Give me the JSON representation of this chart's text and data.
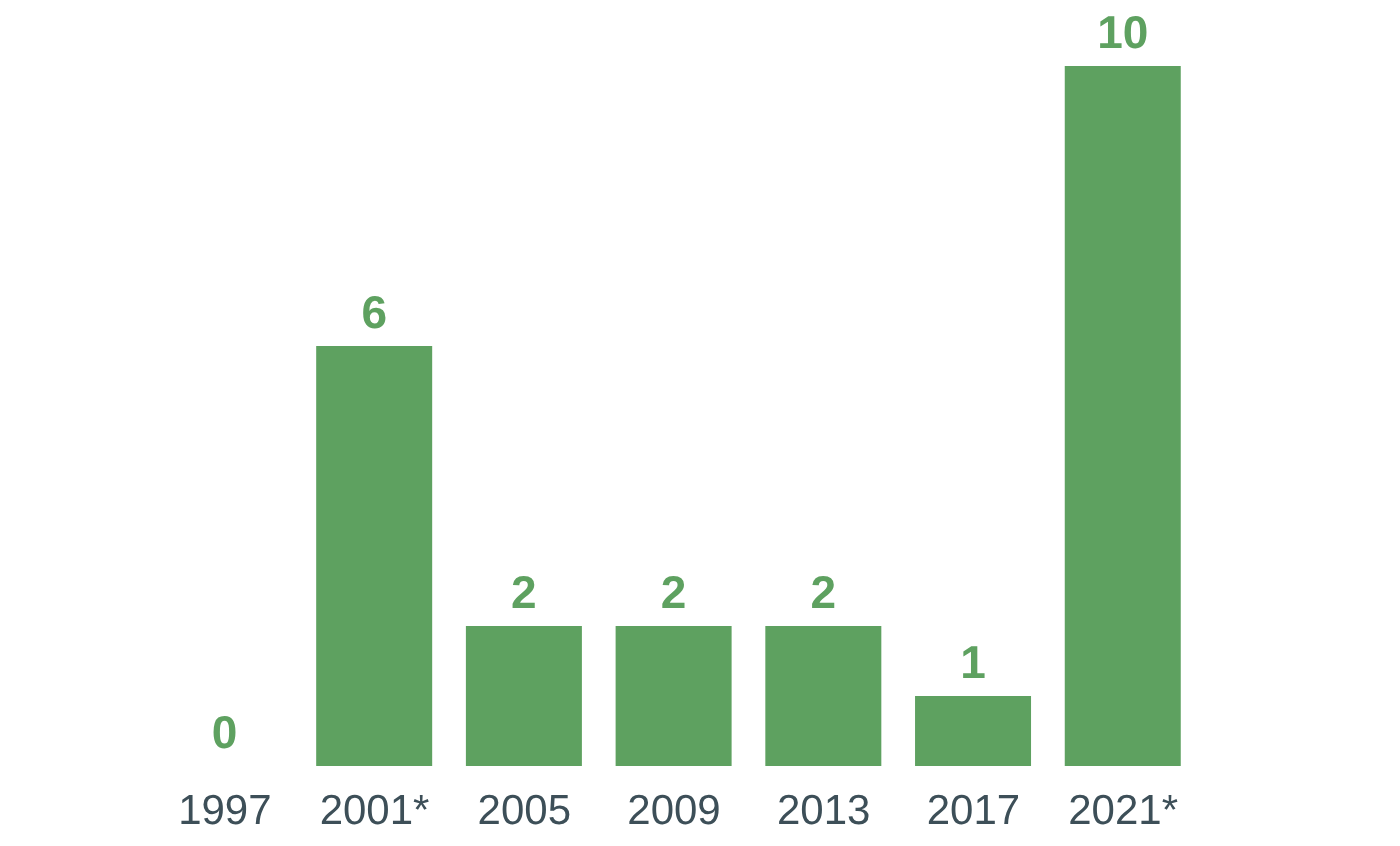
{
  "chart_data": {
    "type": "bar",
    "categories": [
      "1997",
      "2001*",
      "2005",
      "2009",
      "2013",
      "2017",
      "2021*"
    ],
    "values": [
      0,
      6,
      2,
      2,
      2,
      1,
      10
    ],
    "color": "#5ea160",
    "data_labels": true,
    "tick_labels": "x"
  }
}
